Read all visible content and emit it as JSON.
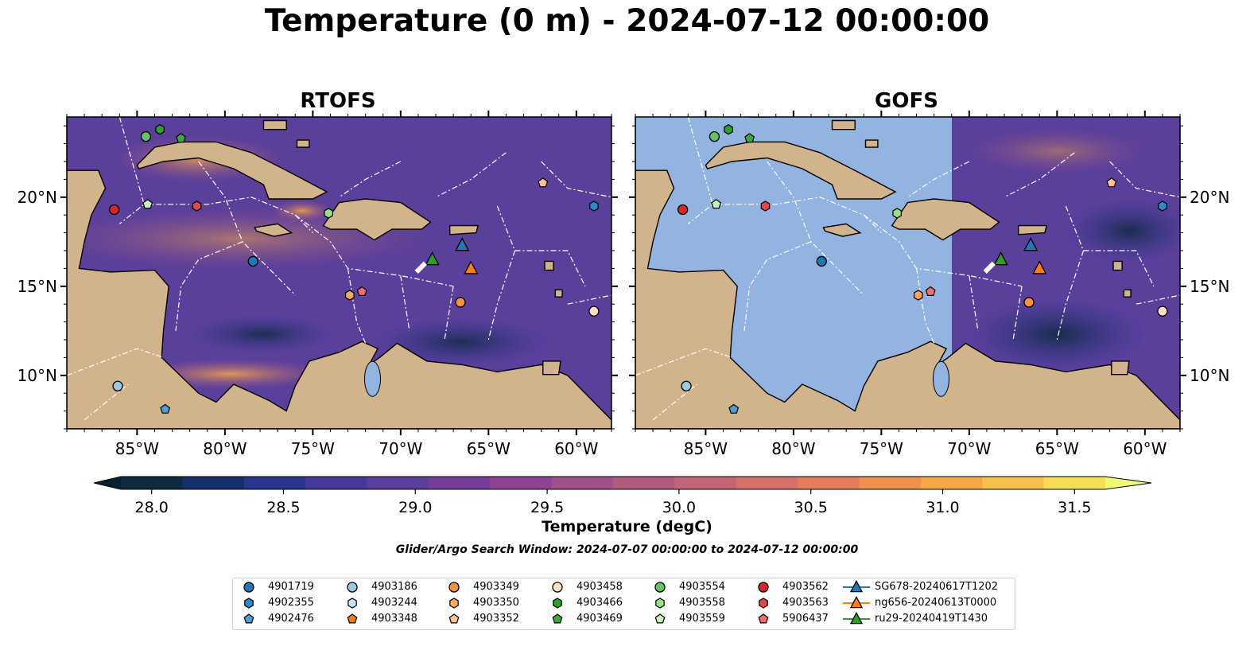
{
  "title": "Temperature (0 m) - 2024-07-12 00:00:00",
  "panels": [
    {
      "id": "rtofs",
      "title": "RTOFS"
    },
    {
      "id": "gofs",
      "title": "GOFS"
    }
  ],
  "axes": {
    "lon_range": [
      -89,
      -58
    ],
    "lat_range": [
      7,
      24.5
    ],
    "lon_ticks": [
      -85,
      -80,
      -75,
      -70,
      -65,
      -60
    ],
    "lon_tick_labels": [
      "85°W",
      "80°W",
      "75°W",
      "70°W",
      "65°W",
      "60°W"
    ],
    "lat_ticks": [
      10,
      15,
      20
    ],
    "lat_tick_labels": [
      "10°N",
      "15°N",
      "20°N"
    ]
  },
  "colorbar": {
    "label": "Temperature (degC)",
    "min": 28.0,
    "max": 31.5,
    "step": 0.25,
    "tick_values": [
      28.0,
      28.5,
      29.0,
      29.5,
      30.0,
      30.5,
      31.0,
      31.5
    ],
    "tick_labels": [
      "28.0",
      "28.5",
      "29.0",
      "29.5",
      "30.0",
      "30.5",
      "31.0",
      "31.5"
    ],
    "colors": [
      "#0f2a3f",
      "#152f6b",
      "#2b3590",
      "#45399c",
      "#5c3f9c",
      "#743f98",
      "#8b4592",
      "#a0508a",
      "#b35b7f",
      "#c46577",
      "#d5706c",
      "#e57d5d",
      "#f0904f",
      "#f5a646",
      "#f7c04a",
      "#f3df54"
    ],
    "under_color": "#06202f",
    "over_color": "#eef976"
  },
  "search_window": "Glider/Argo Search Window: 2024-07-07 00:00:00 to 2024-07-12 00:00:00",
  "legend": [
    {
      "label": "4901719",
      "color": "#1f77b4",
      "shape": "circle"
    },
    {
      "label": "4902355",
      "color": "#2f8ac4",
      "shape": "hexagon"
    },
    {
      "label": "4902476",
      "color": "#4d9fd6",
      "shape": "pentagon"
    },
    {
      "label": "4903186",
      "color": "#9ecae1",
      "shape": "circle"
    },
    {
      "label": "4903244",
      "color": "#c6e2f5",
      "shape": "hexagon"
    },
    {
      "label": "4903348",
      "color": "#f07f0e",
      "shape": "pentagon"
    },
    {
      "label": "4903349",
      "color": "#f9923a",
      "shape": "circle"
    },
    {
      "label": "4903350",
      "color": "#fba95e",
      "shape": "hexagon"
    },
    {
      "label": "4903352",
      "color": "#fdc48f",
      "shape": "pentagon"
    },
    {
      "label": "4903458",
      "color": "#fde0c5",
      "shape": "circle"
    },
    {
      "label": "4903466",
      "color": "#2ca02c",
      "shape": "hexagon"
    },
    {
      "label": "4903469",
      "color": "#3aab3a",
      "shape": "pentagon"
    },
    {
      "label": "4903554",
      "color": "#66c266",
      "shape": "circle"
    },
    {
      "label": "4903558",
      "color": "#98df8a",
      "shape": "hexagon"
    },
    {
      "label": "4903559",
      "color": "#c7f0bb",
      "shape": "pentagon"
    },
    {
      "label": "4903562",
      "color": "#d62728",
      "shape": "circle"
    },
    {
      "label": "4903563",
      "color": "#e04848",
      "shape": "hexagon"
    },
    {
      "label": "5906437",
      "color": "#f07070",
      "shape": "pentagon"
    },
    {
      "label": "SG678-20240617T1202",
      "color": "#1f77b4",
      "shape": "triangle"
    },
    {
      "label": "ng656-20240613T0000",
      "color": "#ff7f0e",
      "shape": "triangle"
    },
    {
      "label": "ru29-20240419T1430",
      "color": "#2ca02c",
      "shape": "triangle"
    }
  ],
  "observations": [
    {
      "id": "4903554",
      "lon": -84.5,
      "lat": 23.4
    },
    {
      "id": "4903466",
      "lon": -83.7,
      "lat": 23.8
    },
    {
      "id": "4903469",
      "lon": -82.5,
      "lat": 23.3
    },
    {
      "id": "4903562",
      "lon": -86.3,
      "lat": 19.3
    },
    {
      "id": "4903559",
      "lon": -84.4,
      "lat": 19.6
    },
    {
      "id": "4903563",
      "lon": -81.6,
      "lat": 19.5
    },
    {
      "id": "4903558",
      "lon": -74.1,
      "lat": 19.1
    },
    {
      "id": "4901719",
      "lon": -78.4,
      "lat": 16.4
    },
    {
      "id": "4903350",
      "lon": -72.9,
      "lat": 14.5
    },
    {
      "id": "5906437",
      "lon": -72.2,
      "lat": 14.7
    },
    {
      "id": "4903349",
      "lon": -66.6,
      "lat": 14.1
    },
    {
      "id": "4903352",
      "lon": -61.9,
      "lat": 20.8
    },
    {
      "id": "4902355",
      "lon": -59.0,
      "lat": 19.5
    },
    {
      "id": "4903458",
      "lon": -59.0,
      "lat": 13.6
    },
    {
      "id": "4903186",
      "lon": -86.1,
      "lat": 9.4
    },
    {
      "id": "4902476",
      "lon": -83.4,
      "lat": 8.1
    },
    {
      "id": "ru29-20240419T1430",
      "lon": -68.2,
      "lat": 16.5
    },
    {
      "id": "SG678-20240617T1202",
      "lon": -66.5,
      "lat": 17.3
    },
    {
      "id": "ng656-20240613T0000",
      "lon": -66.0,
      "lat": 16.0
    }
  ],
  "gofs_coverage": {
    "note": "",
    "lon_min_with_data": -71.0,
    "fill_color": "#93b3e0"
  },
  "land_color": "#d2b48c",
  "ocean_colors": {
    "rtofs_base": "#5c3f9c",
    "gofs_base": "#5c3f9c"
  }
}
